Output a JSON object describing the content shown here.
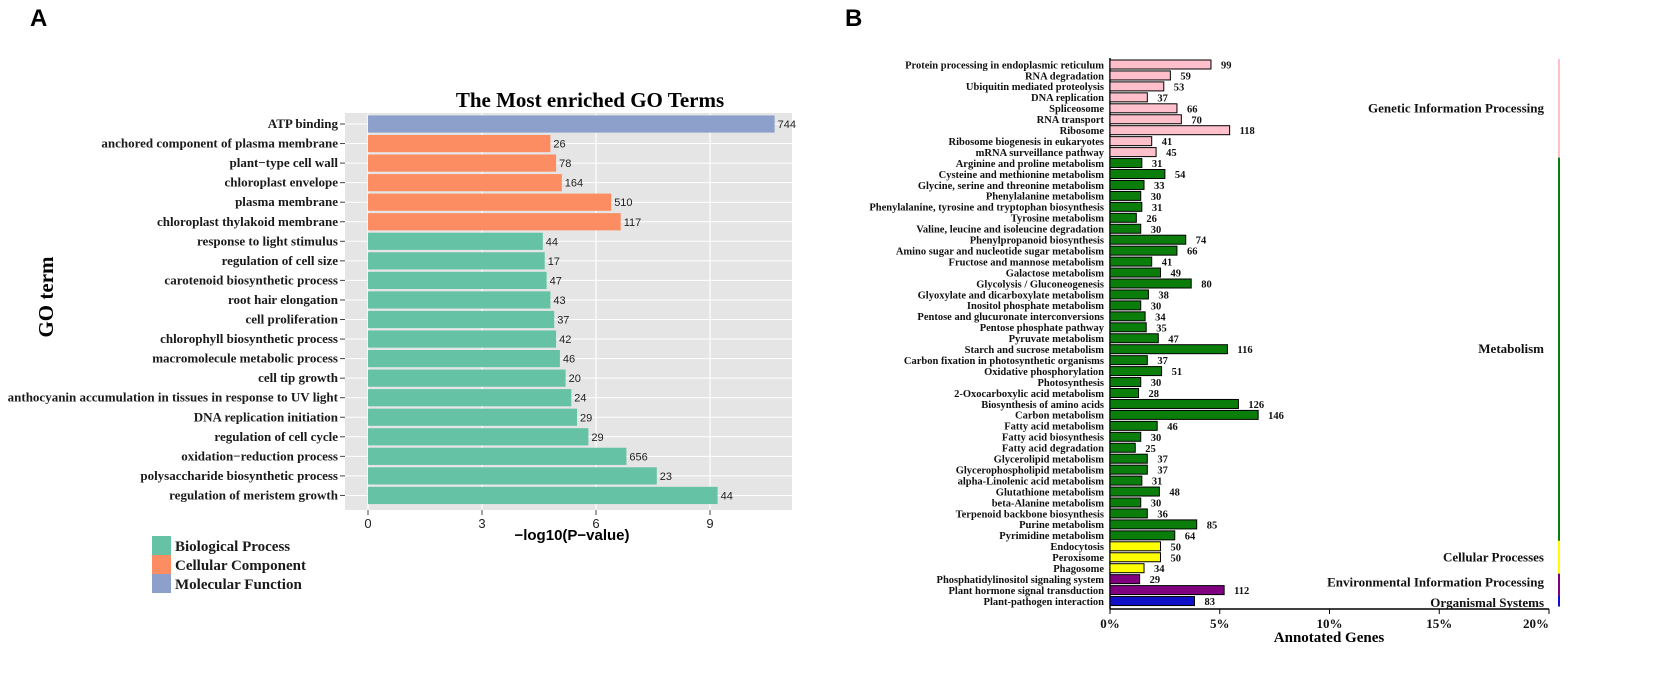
{
  "chart_data": [
    {
      "panel_label": "A",
      "type": "bar",
      "orientation": "horizontal",
      "title": "The Most enriched GO Terms",
      "xlabel": "−log10(P−value)",
      "ylabel": "GO term",
      "xlim": [
        0,
        11.2
      ],
      "xticks": [
        "0",
        "3",
        "6",
        "9"
      ],
      "grid": true,
      "legend_position": "bottom-left",
      "categories": [
        "ATP binding",
        "anchored component of plasma membrane",
        "plant−type cell wall",
        "chloroplast envelope",
        "plasma membrane",
        "chloroplast thylakoid membrane",
        "response to light stimulus",
        "regulation of cell size",
        "carotenoid biosynthetic process",
        "root hair elongation",
        "cell proliferation",
        "chlorophyll biosynthetic process",
        "macromolecule metabolic process",
        "cell tip growth",
        "anthocyanin accumulation in tissues in response to UV light",
        "DNA replication initiation",
        "regulation of cell cycle",
        "oxidation−reduction process",
        "polysaccharide biosynthetic process",
        "regulation of meristem growth"
      ],
      "values": [
        10.7,
        4.8,
        4.95,
        5.1,
        6.4,
        6.65,
        4.6,
        4.65,
        4.7,
        4.8,
        4.9,
        4.95,
        5.05,
        5.2,
        5.35,
        5.5,
        5.8,
        6.8,
        7.6,
        9.2
      ],
      "counts": [
        "744",
        "26",
        "78",
        "164",
        "510",
        "117",
        "44",
        "17",
        "47",
        "43",
        "37",
        "42",
        "46",
        "20",
        "24",
        "29",
        "29",
        "656",
        "23",
        "44"
      ],
      "group_index": [
        2,
        1,
        1,
        1,
        1,
        1,
        0,
        0,
        0,
        0,
        0,
        0,
        0,
        0,
        0,
        0,
        0,
        0,
        0,
        0
      ],
      "legend": [
        {
          "label": "Biological Process",
          "color": "#66c2a5"
        },
        {
          "label": "Cellular Component",
          "color": "#fc8d62"
        },
        {
          "label": "Molecular Function",
          "color": "#8da0cb"
        }
      ]
    },
    {
      "panel_label": "B",
      "type": "bar",
      "orientation": "horizontal",
      "xlabel": "Annotated Genes",
      "xlim": [
        0,
        20
      ],
      "xticks": [
        "0%",
        "5%",
        "10%",
        "15%",
        "20%"
      ],
      "grid": false,
      "categories": [
        "Protein processing in endoplasmic reticulum",
        "RNA degradation",
        "Ubiquitin mediated proteolysis",
        "DNA replication",
        "Spliceosome",
        "RNA transport",
        "Ribosome",
        "Ribosome biogenesis in eukaryotes",
        "mRNA surveillance pathway",
        "Arginine and proline metabolism",
        "Cysteine and methionine metabolism",
        "Glycine, serine and threonine metabolism",
        "Phenylalanine metabolism",
        "Phenylalanine, tyrosine and tryptophan biosynthesis",
        "Tyrosine metabolism",
        "Valine, leucine and isoleucine degradation",
        "Phenylpropanoid biosynthesis",
        "Amino sugar and nucleotide sugar metabolism",
        "Fructose and mannose metabolism",
        "Galactose metabolism",
        "Glycolysis / Gluconeogenesis",
        "Glyoxylate and dicarboxylate metabolism",
        "Inositol phosphate metabolism",
        "Pentose and glucuronate interconversions",
        "Pentose phosphate pathway",
        "Pyruvate metabolism",
        "Starch and sucrose metabolism",
        "Carbon fixation in photosynthetic organisms",
        "Oxidative phosphorylation",
        "Photosynthesis",
        "2-Oxocarboxylic acid metabolism",
        "Biosynthesis of amino acids",
        "Carbon metabolism",
        "Fatty acid metabolism",
        "Fatty acid biosynthesis",
        "Fatty acid degradation",
        "Glycerolipid metabolism",
        "Glycerophospholipid metabolism",
        "alpha-Linolenic acid metabolism",
        "Glutathione metabolism",
        "beta-Alanine metabolism",
        "Terpenoid backbone biosynthesis",
        "Purine metabolism",
        "Pyrimidine metabolism",
        "Endocytosis",
        "Peroxisome",
        "Phagosome",
        "Phosphatidylinositol signaling system",
        "Plant hormone signal transduction",
        "Plant-pathogen interaction"
      ],
      "values": [
        4.6,
        2.75,
        2.45,
        1.7,
        3.05,
        3.25,
        5.45,
        1.9,
        2.1,
        1.45,
        2.5,
        1.55,
        1.4,
        1.45,
        1.2,
        1.4,
        3.45,
        3.05,
        1.9,
        2.3,
        3.7,
        1.75,
        1.4,
        1.6,
        1.65,
        2.2,
        5.35,
        1.7,
        2.35,
        1.4,
        1.3,
        5.85,
        6.75,
        2.15,
        1.4,
        1.15,
        1.7,
        1.7,
        1.45,
        2.25,
        1.4,
        1.7,
        3.95,
        2.95,
        2.3,
        2.3,
        1.55,
        1.35,
        5.2,
        3.85
      ],
      "counts": [
        "99",
        "59",
        "53",
        "37",
        "66",
        "70",
        "118",
        "41",
        "45",
        "31",
        "54",
        "33",
        "30",
        "31",
        "26",
        "30",
        "74",
        "66",
        "41",
        "49",
        "80",
        "38",
        "30",
        "34",
        "35",
        "47",
        "116",
        "37",
        "51",
        "30",
        "28",
        "126",
        "146",
        "46",
        "30",
        "25",
        "37",
        "37",
        "31",
        "48",
        "30",
        "36",
        "85",
        "64",
        "50",
        "50",
        "34",
        "29",
        "112",
        "83"
      ],
      "group_index": [
        0,
        0,
        0,
        0,
        0,
        0,
        0,
        0,
        0,
        1,
        1,
        1,
        1,
        1,
        1,
        1,
        1,
        1,
        1,
        1,
        1,
        1,
        1,
        1,
        1,
        1,
        1,
        1,
        1,
        1,
        1,
        1,
        1,
        1,
        1,
        1,
        1,
        1,
        1,
        1,
        1,
        1,
        1,
        1,
        2,
        2,
        2,
        3,
        3,
        4
      ],
      "groups": [
        {
          "label": "Genetic Information Processing",
          "color": "#ffc0cb"
        },
        {
          "label": "Metabolism",
          "color": "#0a7d0a"
        },
        {
          "label": "Cellular Processes",
          "color": "#ffff00"
        },
        {
          "label": "Environmental Information Processing",
          "color": "#800080"
        },
        {
          "label": "Organismal Systems",
          "color": "#1010c8"
        }
      ]
    }
  ]
}
